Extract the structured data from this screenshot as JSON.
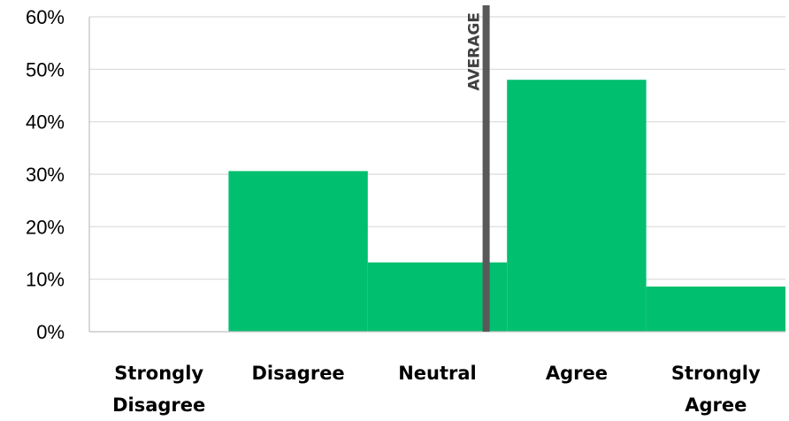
{
  "chart_data": {
    "type": "bar",
    "title": "",
    "xlabel": "",
    "ylabel": "",
    "categories": [
      [
        "Strongly",
        "Disagree"
      ],
      [
        "Disagree"
      ],
      [
        "Neutral"
      ],
      [
        "Agree"
      ],
      [
        "Strongly",
        "Agree"
      ]
    ],
    "values": [
      0,
      30.6,
      13.2,
      48.0,
      8.6
    ],
    "ylim": [
      0,
      60
    ],
    "yticks": [
      "0%",
      "10%",
      "20%",
      "30%",
      "40%",
      "50%",
      "60%"
    ],
    "grid": "horizontal",
    "bar_color": "#00bf6f",
    "average": {
      "label": "AVERAGE",
      "x_position": 2.85,
      "color": "#595959"
    }
  }
}
